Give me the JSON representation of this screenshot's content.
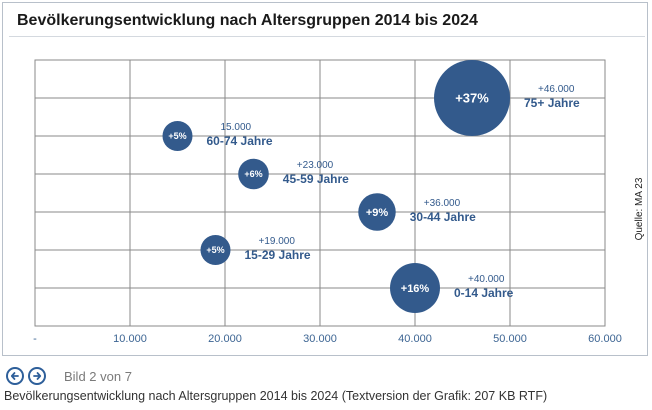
{
  "chart_data": {
    "type": "scatter",
    "title": "Bevölkerungsentwicklung nach Altersgruppen 2014 bis 2024",
    "xlabel": "",
    "ylabel": "",
    "xlim": [
      0,
      60000
    ],
    "x_tick_labels": [
      "-",
      "10.000",
      "20.000",
      "30.000",
      "40.000",
      "50.000",
      "60.000"
    ],
    "grid": true,
    "source_note": "Quelle: MA 23",
    "series": [
      {
        "points": [
          {
            "category": "75+ Jahre",
            "x": 46000,
            "change_label": "+46.000",
            "percent_label": "+37%",
            "percent": 37
          },
          {
            "category": "60-74 Jahre",
            "x": 15000,
            "change_label": "15.000",
            "percent_label": "+5%",
            "percent": 5
          },
          {
            "category": "45-59 Jahre",
            "x": 23000,
            "change_label": "+23.000",
            "percent_label": "+6%",
            "percent": 6
          },
          {
            "category": "30-44 Jahre",
            "x": 36000,
            "change_label": "+36.000",
            "percent_label": "+9%",
            "percent": 9
          },
          {
            "category": "15-29 Jahre",
            "x": 19000,
            "change_label": "+19.000",
            "percent_label": "+5%",
            "percent": 5
          },
          {
            "category": "0-14 Jahre",
            "x": 40000,
            "change_label": "+40.000",
            "percent_label": "+16%",
            "percent": 16
          }
        ]
      }
    ]
  },
  "colors": {
    "bubble": "#335a8c",
    "label": "#335a8c",
    "grid": "#8a8a8a",
    "axis_text": "#3d6593"
  },
  "nav": {
    "prev_icon": "arrow-left-circle-icon",
    "next_icon": "arrow-right-circle-icon",
    "status": "Bild 2 von 7"
  },
  "caption": "Bevölkerungsentwicklung nach Altersgruppen 2014 bis 2024 (Textversion der Grafik: 207 KB RTF)"
}
